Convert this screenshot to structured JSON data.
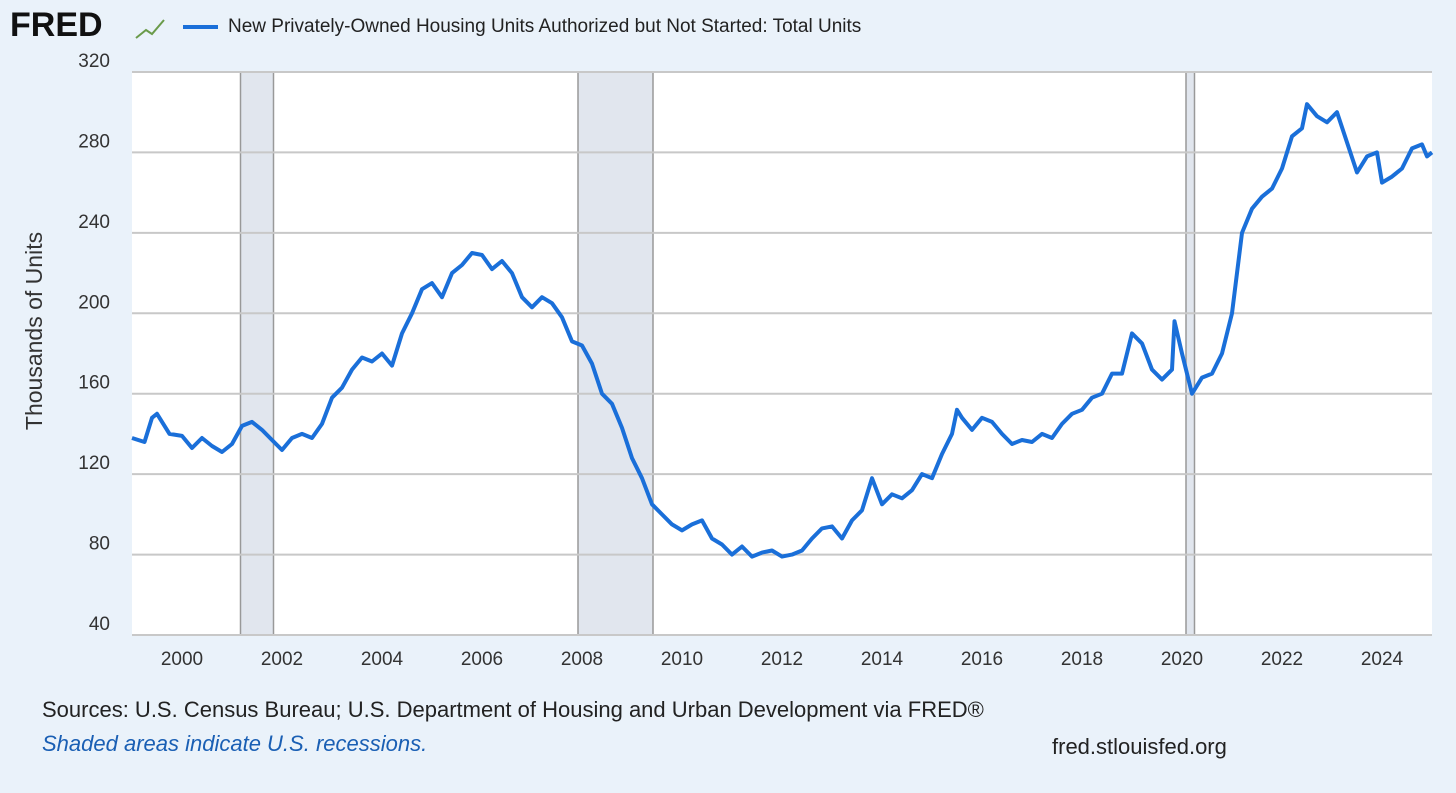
{
  "brand": "FRED",
  "chart_data": {
    "type": "line",
    "title": "New Privately-Owned Housing Units Authorized but Not Started: Total Units",
    "ylabel": "Thousands of Units",
    "series": [
      {
        "name": "New Privately-Owned Housing Units Authorized but Not Started: Total Units",
        "color": "#1a6fd9",
        "x": [
          1999.0,
          1999.25,
          1999.4,
          1999.5,
          1999.75,
          2000.0,
          2000.2,
          2000.4,
          2000.6,
          2000.8,
          2001.0,
          2001.2,
          2001.4,
          2001.6,
          2001.8,
          2002.0,
          2002.2,
          2002.4,
          2002.6,
          2002.8,
          2003.0,
          2003.2,
          2003.4,
          2003.6,
          2003.8,
          2004.0,
          2004.2,
          2004.4,
          2004.6,
          2004.8,
          2005.0,
          2005.2,
          2005.4,
          2005.6,
          2005.8,
          2006.0,
          2006.2,
          2006.4,
          2006.6,
          2006.8,
          2007.0,
          2007.2,
          2007.4,
          2007.6,
          2007.8,
          2008.0,
          2008.2,
          2008.4,
          2008.6,
          2008.8,
          2009.0,
          2009.2,
          2009.4,
          2009.6,
          2009.8,
          2010.0,
          2010.2,
          2010.4,
          2010.6,
          2010.8,
          2011.0,
          2011.2,
          2011.4,
          2011.6,
          2011.8,
          2012.0,
          2012.2,
          2012.4,
          2012.6,
          2012.8,
          2013.0,
          2013.2,
          2013.4,
          2013.6,
          2013.8,
          2014.0,
          2014.2,
          2014.4,
          2014.6,
          2014.8,
          2015.0,
          2015.2,
          2015.4,
          2015.5,
          2015.6,
          2015.8,
          2016.0,
          2016.2,
          2016.4,
          2016.6,
          2016.8,
          2017.0,
          2017.2,
          2017.4,
          2017.6,
          2017.8,
          2018.0,
          2018.2,
          2018.4,
          2018.6,
          2018.8,
          2019.0,
          2019.2,
          2019.4,
          2019.6,
          2019.8,
          2019.85,
          2020.0,
          2020.2,
          2020.4,
          2020.6,
          2020.8,
          2021.0,
          2021.2,
          2021.4,
          2021.6,
          2021.8,
          2022.0,
          2022.2,
          2022.4,
          2022.5,
          2022.7,
          2022.9,
          2023.1,
          2023.3,
          2023.5,
          2023.7,
          2023.9,
          2024.0,
          2024.2,
          2024.4,
          2024.6,
          2024.8,
          2024.9,
          2025.0
        ],
        "values": [
          138,
          136,
          148,
          150,
          140,
          139,
          133,
          138,
          134,
          131,
          135,
          144,
          146,
          142,
          137,
          132,
          138,
          140,
          138,
          145,
          158,
          163,
          172,
          178,
          176,
          180,
          174,
          190,
          200,
          212,
          215,
          208,
          220,
          224,
          230,
          229,
          222,
          226,
          220,
          208,
          203,
          208,
          205,
          198,
          186,
          184,
          175,
          160,
          155,
          143,
          128,
          118,
          105,
          100,
          95,
          92,
          95,
          97,
          88,
          85,
          80,
          84,
          79,
          81,
          82,
          79,
          80,
          82,
          88,
          93,
          94,
          88,
          97,
          102,
          118,
          105,
          110,
          108,
          112,
          120,
          118,
          130,
          140,
          152,
          148,
          142,
          148,
          146,
          140,
          135,
          137,
          136,
          140,
          138,
          145,
          150,
          152,
          158,
          160,
          170,
          170,
          190,
          185,
          172,
          167,
          172,
          196,
          180,
          160,
          168,
          170,
          180,
          200,
          240,
          252,
          258,
          262,
          272,
          288,
          292,
          304,
          298,
          295,
          300,
          285,
          270,
          278,
          280,
          265,
          268,
          272,
          282,
          284,
          278,
          280
        ]
      }
    ],
    "recessions": [
      [
        2001.17,
        2001.83
      ],
      [
        2007.92,
        2009.42
      ],
      [
        2020.08,
        2020.25
      ]
    ],
    "xlim": [
      1999,
      2025
    ],
    "xticks": [
      2000,
      2002,
      2004,
      2006,
      2008,
      2010,
      2012,
      2014,
      2016,
      2018,
      2020,
      2022,
      2024
    ],
    "ylim": [
      40,
      320
    ],
    "yticks": [
      40,
      80,
      120,
      160,
      200,
      240,
      280,
      320
    ],
    "grid": true
  },
  "footer": {
    "sources": "Sources: U.S. Census Bureau; U.S. Department of Housing and Urban Development via FRED®",
    "note": "Shaded areas indicate U.S. recessions.",
    "site": "fred.stlouisfed.org"
  }
}
